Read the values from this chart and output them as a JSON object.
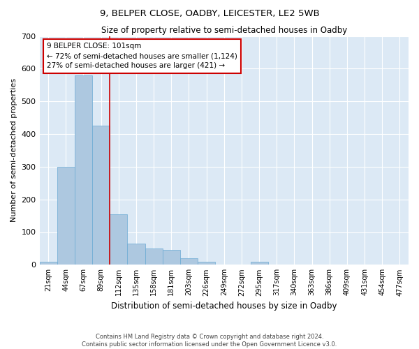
{
  "title1": "9, BELPER CLOSE, OADBY, LEICESTER, LE2 5WB",
  "title2": "Size of property relative to semi-detached houses in Oadby",
  "xlabel": "Distribution of semi-detached houses by size in Oadby",
  "ylabel": "Number of semi-detached properties",
  "categories": [
    "21sqm",
    "44sqm",
    "67sqm",
    "89sqm",
    "112sqm",
    "135sqm",
    "158sqm",
    "181sqm",
    "203sqm",
    "226sqm",
    "249sqm",
    "272sqm",
    "295sqm",
    "317sqm",
    "340sqm",
    "363sqm",
    "386sqm",
    "409sqm",
    "431sqm",
    "454sqm",
    "477sqm"
  ],
  "values": [
    10,
    300,
    580,
    425,
    155,
    65,
    50,
    45,
    20,
    10,
    0,
    0,
    10,
    0,
    0,
    0,
    0,
    0,
    0,
    0,
    0
  ],
  "bar_color": "#adc8e0",
  "bar_edge_color": "#6aaad4",
  "bg_color": "#dce9f5",
  "grid_color": "#ffffff",
  "vline_color": "#cc0000",
  "annotation_text": "9 BELPER CLOSE: 101sqm\n← 72% of semi-detached houses are smaller (1,124)\n27% of semi-detached houses are larger (421) →",
  "annotation_box_color": "#cc0000",
  "ylim": [
    0,
    700
  ],
  "yticks": [
    0,
    100,
    200,
    300,
    400,
    500,
    600,
    700
  ],
  "footer1": "Contains HM Land Registry data © Crown copyright and database right 2024.",
  "footer2": "Contains public sector information licensed under the Open Government Licence v3.0."
}
